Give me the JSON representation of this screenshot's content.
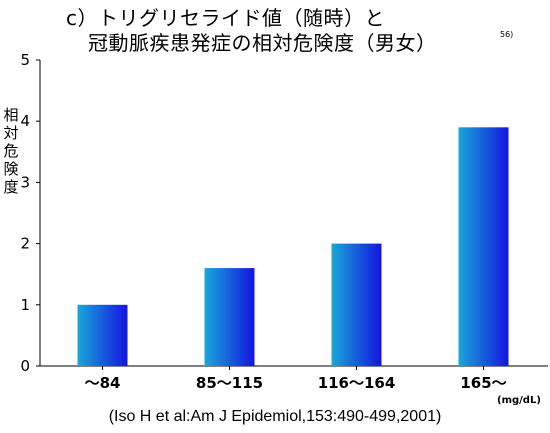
{
  "title": {
    "line1": "c）トリグリセライド値（随時）と",
    "line2": "冠動脈疾患発症の相対危険度（男女）",
    "ref_sup": "56)"
  },
  "source_note": "(Iso H et al:Am J Epidemiol,153:490-499,2001)",
  "colors": {
    "bar_light": "#19a8d8",
    "bar_dark": "#1414e0",
    "axis": "#000000"
  },
  "chart_data": {
    "type": "bar",
    "title": "c）トリグリセライド値（随時）と冠動脈疾患発症の相対危険度（男女）",
    "categories": [
      "〜84",
      "85〜115",
      "116〜164",
      "165〜"
    ],
    "values": [
      1.0,
      1.6,
      2.0,
      3.9
    ],
    "xlabel": "(mg/dL)",
    "ylabel": "相対危険度",
    "ylim": [
      0,
      5
    ],
    "yticks": [
      0,
      1,
      2,
      3,
      4,
      5
    ],
    "grid": false,
    "legend": "none"
  }
}
